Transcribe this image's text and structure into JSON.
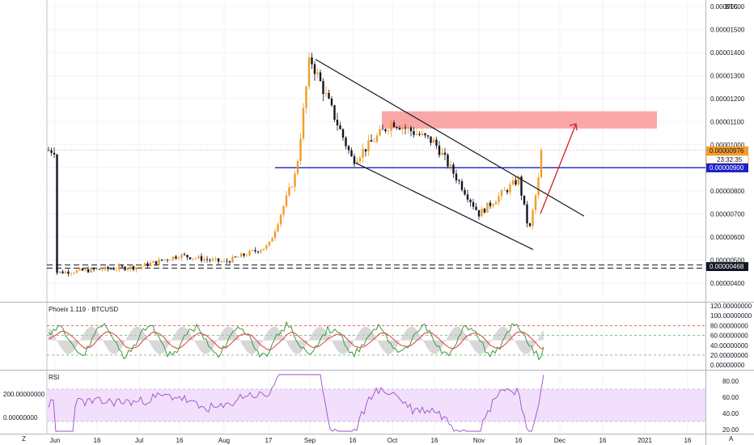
{
  "header": {
    "currency_label": "BTC"
  },
  "footer": {
    "left_mark": "Z",
    "right_mark": "A"
  },
  "price_badges": {
    "current": "0.00000976",
    "countdown": "23:32:35",
    "level_blue": "0.00000900",
    "level_dashed": "0.00000468"
  },
  "colors": {
    "up": "#f39c2b",
    "down": "#131722",
    "blue": "#1f22c8",
    "zone": "#f88a8a",
    "arrow": "#d11f1f",
    "rsi": "#9b4fc7",
    "rsi_band": "#f1dffb",
    "osc_green": "#3a9a3a",
    "osc_red": "#e23c3c"
  },
  "chart_data": [
    {
      "type": "candlestick",
      "title": "",
      "x_ticks": [
        "Jun",
        "16",
        "Jul",
        "16",
        "Aug",
        "17",
        "Sep",
        "16",
        "Oct",
        "16",
        "Nov",
        "16",
        "Dec",
        "16",
        "2021",
        "16"
      ],
      "y_ticks": [
        "0.00000400",
        "0.00000500",
        "0.00000600",
        "0.00000700",
        "0.00000800",
        "0.00000900",
        "0.00001000",
        "0.00001100",
        "0.00001200",
        "0.00001300",
        "0.00001400",
        "0.00001500",
        "0.00001600"
      ],
      "ylim": [
        3.5e-06,
        1.61e-05
      ],
      "price_samples": [
        [
          "Jun",
          4.45e-06
        ],
        [
          "Jul",
          4.7e-06
        ],
        [
          "Jul 16",
          5.2e-06
        ],
        [
          "Aug",
          4.9e-06
        ],
        [
          "Aug 17",
          5.6e-06
        ],
        [
          "Aug 28",
          8.8e-06
        ],
        [
          "Sep 1",
          1.38e-05
        ],
        [
          "Sep 16",
          9.3e-06
        ],
        [
          "Oct",
          1.1e-05
        ],
        [
          "Oct 16",
          1.01e-05
        ],
        [
          "Nov",
          7e-06
        ],
        [
          "Nov 16",
          8.5e-06
        ],
        [
          "Nov 22",
          6.2e-06
        ],
        [
          "Nov 27",
          9.76e-06
        ]
      ],
      "levels": [
        9e-06,
        4.68e-06
      ],
      "resistance_zone": [
        1.07e-05,
        1.145e-05
      ]
    },
    {
      "type": "line",
      "title": "Phoeix 1.119 · BTCUSD",
      "y_ticks": [
        "0.00000000",
        "20.00000000",
        "40.00000000",
        "60.00000000",
        "80.00000000",
        "100.00000000",
        "120.00000000"
      ],
      "ylim": [
        -8,
        125
      ],
      "guides": [
        80,
        60,
        20
      ]
    },
    {
      "type": "line",
      "title": "RSI",
      "y_ticks": [
        "20.00",
        "40.00",
        "60.00",
        "80.00"
      ],
      "ylim": [
        15,
        92
      ],
      "left_ticks": [
        "200.00000000",
        "0.00000000"
      ],
      "band": [
        30,
        70
      ]
    }
  ]
}
